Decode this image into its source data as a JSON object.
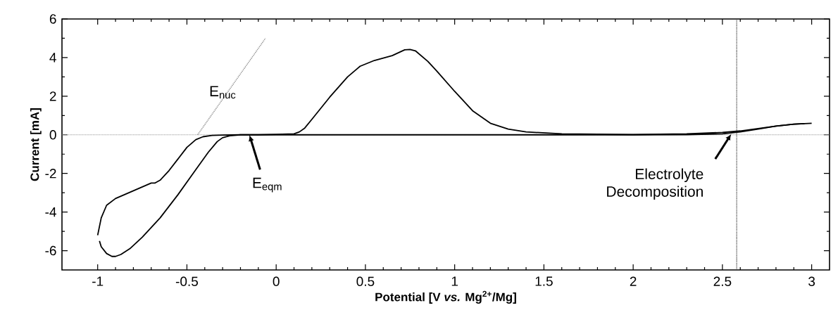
{
  "chart_data": {
    "type": "line",
    "xlabel": "Potential [V *vs.* Mg$^{2+}$/Mg]",
    "ylabel": "Current [mA]",
    "xlim": [
      -1.2,
      3.1
    ],
    "ylim": [
      -7,
      6
    ],
    "xticks": [
      -1,
      -0.5,
      0,
      0.5,
      1,
      1.5,
      2,
      2.5,
      3
    ],
    "yticks": [
      -6,
      -4,
      -2,
      0,
      2,
      4,
      6
    ],
    "marker": "none",
    "series": [
      {
        "color": "#000000",
        "line_style": "solid",
        "x": [
          2.96,
          2.9,
          2.8,
          2.7,
          2.6,
          2.5,
          2.3,
          2.0,
          1.5,
          1.0,
          0.5,
          0.0,
          -0.2,
          -0.3,
          -0.36,
          -0.41,
          -0.45,
          -0.5,
          -0.55,
          -0.6,
          -0.65,
          -0.68,
          -0.7,
          -0.75,
          -0.8,
          -0.85,
          -0.9,
          -0.95,
          -0.98,
          -1.0
        ],
        "values": [
          0.58,
          0.55,
          0.45,
          0.3,
          0.15,
          0.05,
          0.01,
          0.0,
          0.0,
          0.0,
          0.0,
          0.0,
          0.0,
          -0.01,
          -0.03,
          -0.1,
          -0.25,
          -0.65,
          -1.25,
          -1.85,
          -2.35,
          -2.5,
          -2.5,
          -2.7,
          -2.9,
          -3.1,
          -3.3,
          -3.65,
          -4.3,
          -5.2
        ]
      },
      {
        "color": "#000000",
        "line_style": "solid",
        "x": [
          -0.99,
          -0.98,
          -0.95,
          -0.92,
          -0.9,
          -0.87,
          -0.82,
          -0.75,
          -0.65,
          -0.55,
          -0.45,
          -0.38,
          -0.33,
          -0.3,
          -0.26,
          -0.2,
          -0.1,
          0.0,
          0.1,
          0.13,
          0.16,
          0.2,
          0.3,
          0.4,
          0.47,
          0.55,
          0.65,
          0.72,
          0.75,
          0.78,
          0.85,
          0.9,
          1.0,
          1.1,
          1.2,
          1.3,
          1.4,
          1.6,
          2.0,
          2.3,
          2.5,
          2.6,
          2.7,
          2.8,
          2.9,
          3.0
        ],
        "values": [
          -5.5,
          -5.8,
          -6.15,
          -6.3,
          -6.3,
          -6.2,
          -5.9,
          -5.3,
          -4.3,
          -3.1,
          -1.8,
          -0.9,
          -0.35,
          -0.15,
          -0.05,
          0.0,
          0.0,
          0.02,
          0.05,
          0.15,
          0.35,
          0.8,
          1.95,
          3.0,
          3.55,
          3.85,
          4.1,
          4.4,
          4.42,
          4.35,
          3.8,
          3.3,
          2.25,
          1.25,
          0.6,
          0.3,
          0.15,
          0.05,
          0.01,
          0.05,
          0.12,
          0.2,
          0.32,
          0.45,
          0.55,
          0.6
        ]
      },
      {
        "color": "#999999",
        "line_style": "dotted",
        "x": [
          -0.44,
          -0.06
        ],
        "values": [
          0,
          5
        ]
      }
    ],
    "ref_lines": [
      {
        "axis": "y",
        "value": 0,
        "color": "#999999",
        "line_style": "dotted"
      },
      {
        "axis": "x",
        "value": 2.58,
        "color": "#333333",
        "line_style": "dotted"
      }
    ],
    "annotations": [
      {
        "text": "E$_{nuc}$",
        "x": -0.3,
        "y": 2.2
      },
      {
        "text": "E$_{eqm}$",
        "x": -0.15,
        "y": 0
      },
      {
        "text": "Electrolyte Decomposition",
        "x": 2.55,
        "y": 0.05
      }
    ]
  }
}
